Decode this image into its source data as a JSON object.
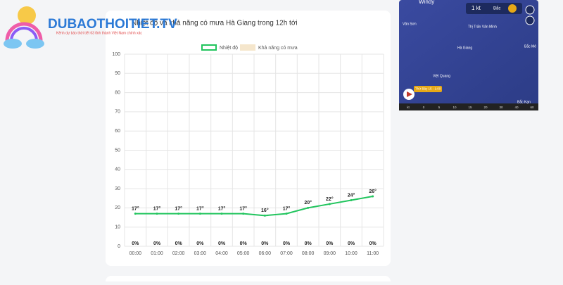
{
  "logo": {
    "name": "DUBAOTHOITIET.TV",
    "tagline": "Kênh dự báo thời tiết 63 tỉnh thành Việt Nam chính xác"
  },
  "chart_data": {
    "type": "line",
    "title": "Nhiệt độ và khả năng có mưa Hà Giang trong 12h tới",
    "categories": [
      "00:00",
      "01:00",
      "02:00",
      "03:00",
      "04:00",
      "05:00",
      "06:00",
      "07:00",
      "08:00",
      "09:00",
      "10:00",
      "11:00"
    ],
    "series": [
      {
        "name": "Nhiệt độ",
        "color": "#22c55e",
        "values": [
          17,
          17,
          17,
          17,
          17,
          17,
          16,
          17,
          20,
          22,
          24,
          26
        ],
        "value_labels": [
          "17°",
          "17°",
          "17°",
          "17°",
          "17°",
          "17°",
          "16°",
          "17°",
          "20°",
          "22°",
          "24°",
          "26°"
        ]
      },
      {
        "name": "Khả năng có mưa",
        "color": "#f5e6cc",
        "type": "bar",
        "values": [
          0,
          0,
          0,
          0,
          0,
          0,
          0,
          0,
          0,
          0,
          0,
          0
        ],
        "value_labels": [
          "0%",
          "0%",
          "0%",
          "0%",
          "0%",
          "0%",
          "0%",
          "0%",
          "0%",
          "0%",
          "0%",
          "0%"
        ]
      }
    ],
    "ylim": [
      0,
      100
    ],
    "yticks": [
      0,
      10,
      20,
      30,
      40,
      50,
      60,
      70,
      80,
      90,
      100
    ],
    "grid": true,
    "legend": "top"
  },
  "map": {
    "brand": "Windy",
    "wind": "1 kt",
    "direction": "Bắc",
    "time": "Thứ Bảy 15 - 1:00",
    "places": [
      "Vân Sơn",
      "Thị Trấn Vân Minh",
      "Hà Giang",
      "Việt Quang",
      "Bắc Mê",
      "Bắc Kạn"
    ],
    "scale": [
      "kt",
      "0",
      "5",
      "10",
      "15",
      "20",
      "30",
      "40",
      "60"
    ]
  }
}
